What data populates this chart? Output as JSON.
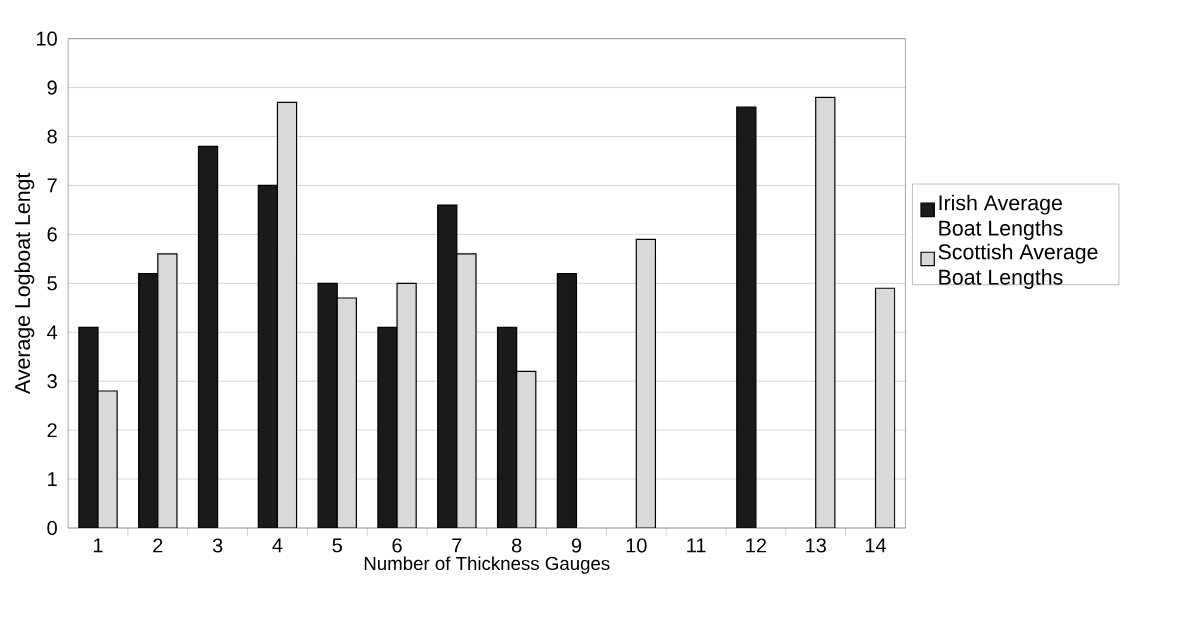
{
  "chart_data": {
    "type": "bar",
    "xlabel": "Number of Thickness Gauges",
    "ylabel": "Average Logboat Lengt",
    "categories": [
      "1",
      "2",
      "3",
      "4",
      "5",
      "6",
      "7",
      "8",
      "9",
      "10",
      "11",
      "12",
      "13",
      "14"
    ],
    "series": [
      {
        "name": "Irish Average Boat Lengths",
        "color": "#1a1a1a",
        "values": [
          4.1,
          5.2,
          7.8,
          7.0,
          5.0,
          4.1,
          6.6,
          4.1,
          5.2,
          null,
          null,
          8.6,
          null,
          null
        ]
      },
      {
        "name": "Scottish Average Boat Lengths",
        "color": "#d9d9d9",
        "values": [
          2.8,
          5.6,
          null,
          8.7,
          4.7,
          5.0,
          5.6,
          3.2,
          null,
          5.9,
          null,
          null,
          8.8,
          4.9
        ]
      }
    ],
    "ylim": [
      0,
      10
    ],
    "yticks": [
      0,
      1,
      2,
      3,
      4,
      5,
      6,
      7,
      8,
      9,
      10
    ],
    "grid": "y",
    "legend": "right"
  }
}
